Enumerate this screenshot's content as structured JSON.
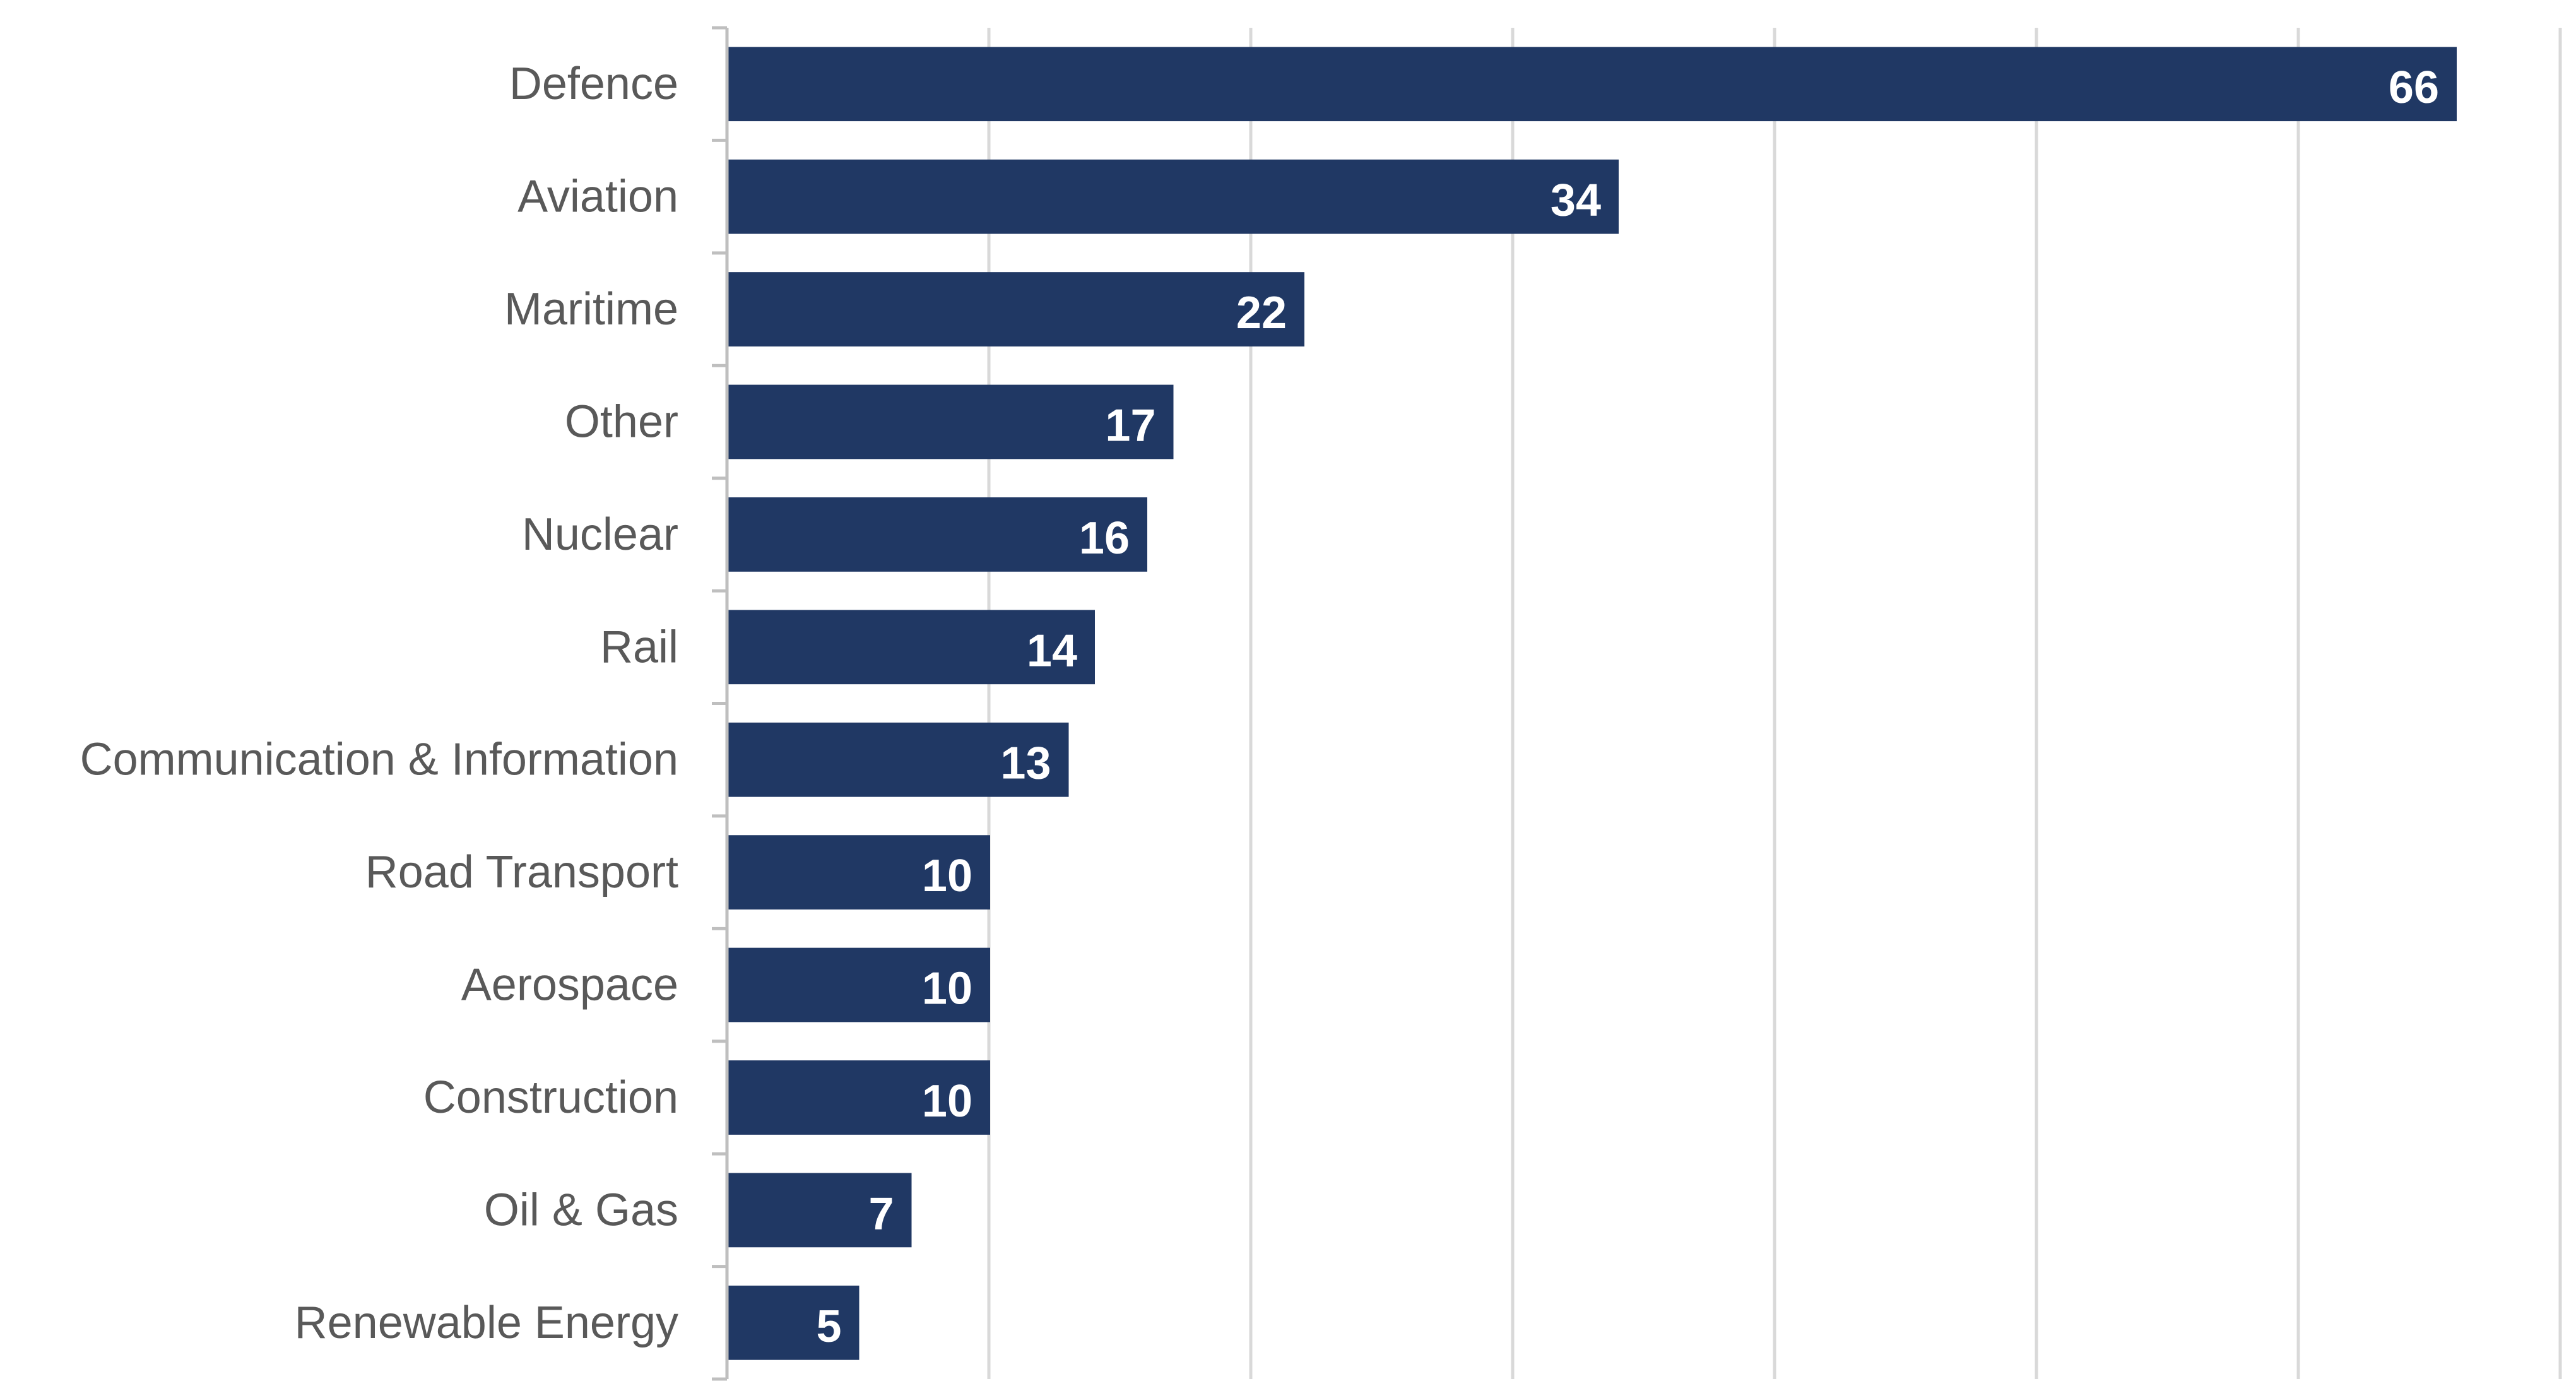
{
  "chart_data": {
    "type": "bar",
    "orientation": "horizontal",
    "categories": [
      "Defence",
      "Aviation",
      "Maritime",
      "Other",
      "Nuclear",
      "Rail",
      "Communication & Information",
      "Road Transport",
      "Aerospace",
      "Construction",
      "Oil & Gas",
      "Renewable Energy"
    ],
    "values": [
      66,
      34,
      22,
      17,
      16,
      14,
      13,
      10,
      10,
      10,
      7,
      5
    ],
    "title": "",
    "xlabel": "",
    "ylabel": "",
    "xlim": [
      0,
      70
    ],
    "grid": true,
    "legend": "none",
    "bar_color": "#203864",
    "grid_color": "#d9d9d9",
    "axis_color": "#bfbfbf",
    "category_label_color": "#595959",
    "data_label_color": "#ffffff"
  }
}
